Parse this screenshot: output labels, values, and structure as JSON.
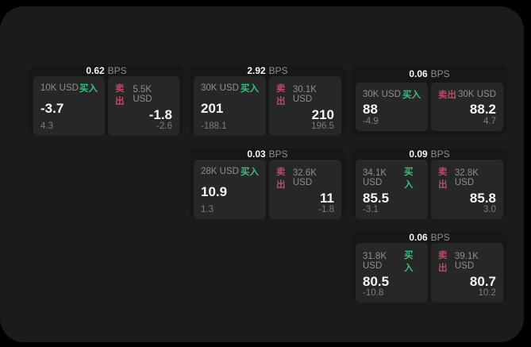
{
  "colors": {
    "page_bg": "#1b1b1b",
    "card_bg": "#171717",
    "panel_bg": "#272727",
    "buy_green": "#3dbd7e",
    "sell_red": "#bd4962"
  },
  "labels": {
    "bps": "BPS",
    "buy": "买入",
    "sell": "卖出"
  },
  "cards": [
    {
      "row": 1,
      "col": 1,
      "bps": "0.62",
      "buy": {
        "amount": "10K USD",
        "price": "-3.7",
        "delta": "4.3"
      },
      "sell": {
        "amount": "5.5K USD",
        "price": "-1.8",
        "delta": "-2.6"
      }
    },
    {
      "row": 1,
      "col": 2,
      "bps": "2.92",
      "buy": {
        "amount": "30K USD",
        "price": "201",
        "delta": "-188.1"
      },
      "sell": {
        "amount": "30.1K USD",
        "price": "210",
        "delta": "196.5"
      }
    },
    {
      "row": 1,
      "col": 3,
      "bps": "0.06",
      "buy": {
        "amount": "30K USD",
        "price": "88",
        "delta": "-4.9"
      },
      "sell": {
        "amount": "30K USD",
        "price": "88.2",
        "delta": "4.7"
      }
    },
    {
      "row": 2,
      "col": 2,
      "bps": "0.03",
      "buy": {
        "amount": "28K USD",
        "price": "10.9",
        "delta": "1.3"
      },
      "sell": {
        "amount": "32.6K USD",
        "price": "11",
        "delta": "-1.8"
      }
    },
    {
      "row": 2,
      "col": 3,
      "bps": "0.09",
      "buy": {
        "amount": "34.1K USD",
        "price": "85.5",
        "delta": "-3.1"
      },
      "sell": {
        "amount": "32.8K USD",
        "price": "85.8",
        "delta": "3.0"
      }
    },
    {
      "row": 3,
      "col": 3,
      "bps": "0.06",
      "buy": {
        "amount": "31.8K USD",
        "price": "80.5",
        "delta": "-10.8"
      },
      "sell": {
        "amount": "39.1K USD",
        "price": "80.7",
        "delta": "10.2"
      }
    }
  ]
}
